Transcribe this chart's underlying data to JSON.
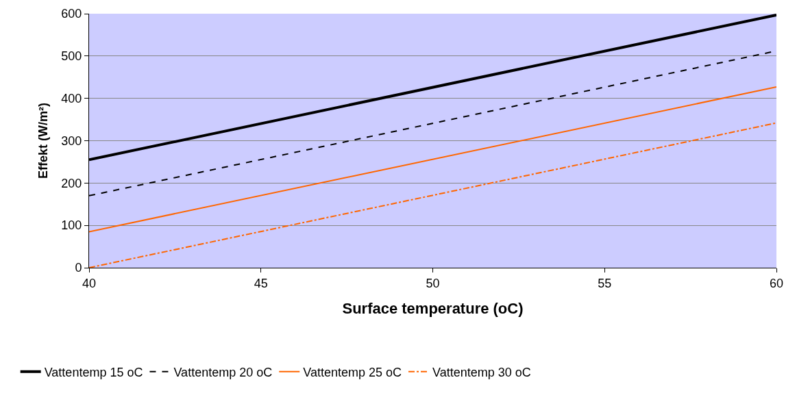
{
  "chart_data": {
    "type": "line",
    "xlabel": "Surface temperature (oC)",
    "ylabel": "Effekt (W/m²)",
    "x": [
      40,
      60
    ],
    "xlim": [
      40,
      60
    ],
    "xticks": [
      40,
      45,
      50,
      55,
      60
    ],
    "ylim": [
      0,
      600
    ],
    "yticks": [
      0,
      100,
      200,
      300,
      400,
      500,
      600
    ],
    "grid": "y",
    "legend": "bottom",
    "marker": "none",
    "series": [
      {
        "name": "Vattentemp 15 oC",
        "color": "#000000",
        "values": [
          255,
          597
        ],
        "line_style": "solid"
      },
      {
        "name": "Vattentemp 20 oC",
        "color": "#000000",
        "values": [
          170,
          512
        ],
        "line_style": "dashed"
      },
      {
        "name": "Vattentemp 25 oC",
        "color": "#ff6600",
        "values": [
          85,
          427
        ],
        "line_style": "solid"
      },
      {
        "name": "Vattentemp 30 oC",
        "color": "#ff6600",
        "values": [
          0,
          342
        ],
        "line_style": "dashdot"
      }
    ]
  }
}
